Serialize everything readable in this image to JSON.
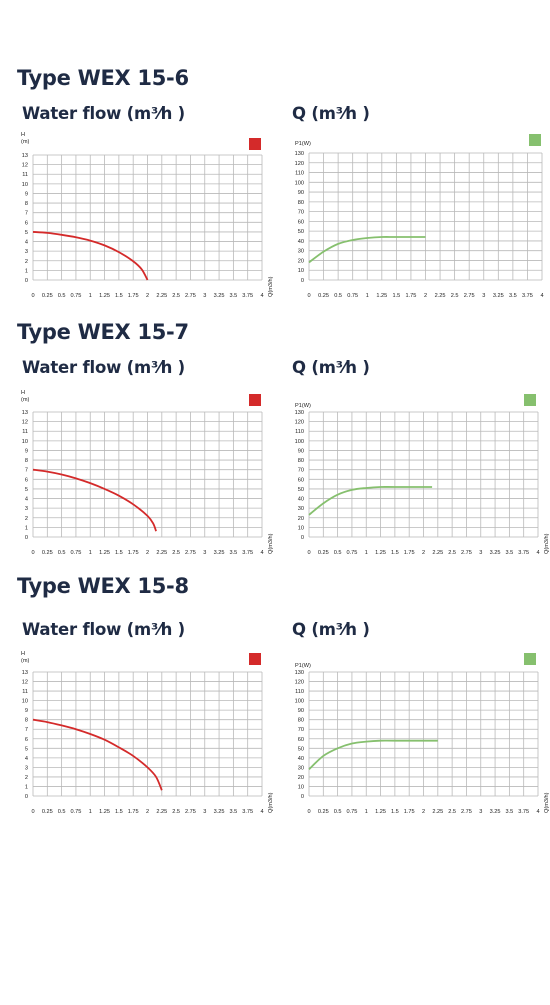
{
  "sections": [
    {
      "title": "Type WEX 15-6",
      "left_title": "Water flow (m³⁄h )",
      "right_title": "Q (m³⁄h )"
    },
    {
      "title": "Type WEX 15-7",
      "left_title": "Water flow (m³⁄h )",
      "right_title": "Q (m³⁄h )"
    },
    {
      "title": "Type WEX 15-8",
      "left_title": "Water flow (m³⁄h )",
      "right_title": "Q (m³⁄h )"
    }
  ],
  "colors": {
    "head_curve": "#d42a2a",
    "power_curve": "#86c06e",
    "grid": "#b9b9b9"
  },
  "chart_data": [
    {
      "type": "line",
      "title": "",
      "xlabel": "Q(m3/h)",
      "ylabel": "H (m)",
      "xlim": [
        0,
        4
      ],
      "ylim": [
        0,
        13
      ],
      "grid": true,
      "legend": "top-right",
      "x_ticks": [
        "0",
        "0.25",
        "0.5",
        "0.75",
        "1",
        "1.25",
        "1.5",
        "1.75",
        "2",
        "2.25",
        "2.5",
        "2.75",
        "3",
        "3.25",
        "3.5",
        "3.75",
        "4"
      ],
      "y_ticks": [
        "0",
        "1",
        "2",
        "3",
        "4",
        "5",
        "6",
        "7",
        "8",
        "9",
        "10",
        "11",
        "12",
        "13"
      ],
      "series": [
        {
          "color": "#d42a2a",
          "x": [
            0,
            0.25,
            0.5,
            0.75,
            1,
            1.25,
            1.5,
            1.75,
            1.9,
            2.0
          ],
          "y": [
            5.0,
            4.9,
            4.7,
            4.45,
            4.1,
            3.6,
            2.9,
            1.95,
            1.1,
            0
          ]
        }
      ]
    },
    {
      "type": "line",
      "title": "",
      "xlabel": "",
      "ylabel": "P1(W)",
      "xlim": [
        0,
        4
      ],
      "ylim": [
        0,
        130
      ],
      "grid": true,
      "legend": "top-right",
      "x_ticks": [
        "0",
        "0.25",
        "0.5",
        "0.75",
        "1",
        "1.25",
        "1.5",
        "1.75",
        "2",
        "2.25",
        "2.5",
        "2.75",
        "3",
        "3.25",
        "3.5",
        "3.75",
        "4"
      ],
      "y_ticks": [
        "0",
        "10",
        "20",
        "30",
        "40",
        "50",
        "60",
        "70",
        "80",
        "90",
        "100",
        "110",
        "120",
        "130"
      ],
      "series": [
        {
          "color": "#86c06e",
          "x": [
            0,
            0.25,
            0.5,
            0.75,
            1,
            1.25,
            1.5,
            2.0
          ],
          "y": [
            18,
            29,
            37,
            41,
            43,
            44,
            44,
            44
          ]
        }
      ]
    },
    {
      "type": "line",
      "title": "",
      "xlabel": "Q(m3/h)",
      "ylabel": "H (m)",
      "xlim": [
        0,
        4
      ],
      "ylim": [
        0,
        13
      ],
      "grid": true,
      "legend": "top-right",
      "x_ticks": [
        "0",
        "0.25",
        "0.5",
        "0.75",
        "1",
        "1.25",
        "1.5",
        "1.75",
        "2",
        "2.25",
        "2.5",
        "2.75",
        "3",
        "3.25",
        "3.5",
        "3.75",
        "4"
      ],
      "y_ticks": [
        "0",
        "1",
        "2",
        "3",
        "4",
        "5",
        "6",
        "7",
        "8",
        "9",
        "10",
        "11",
        "12",
        "13"
      ],
      "series": [
        {
          "color": "#d42a2a",
          "x": [
            0,
            0.25,
            0.5,
            0.75,
            1,
            1.25,
            1.5,
            1.75,
            2.0,
            2.1,
            2.15
          ],
          "y": [
            7.0,
            6.8,
            6.5,
            6.1,
            5.6,
            5.0,
            4.3,
            3.4,
            2.2,
            1.4,
            0.6
          ]
        }
      ]
    },
    {
      "type": "line",
      "title": "",
      "xlabel": "Q(m3/h)",
      "ylabel": "P1(W)",
      "xlim": [
        0,
        4
      ],
      "ylim": [
        0,
        130
      ],
      "grid": true,
      "legend": "top-right",
      "x_ticks": [
        "0",
        "0.25",
        "0.5",
        "0.75",
        "1",
        "1.25",
        "1.5",
        "1.75",
        "2",
        "2.25",
        "2.5",
        "2.75",
        "3",
        "3.25",
        "3.5",
        "3.75",
        "4"
      ],
      "y_ticks": [
        "0",
        "10",
        "20",
        "30",
        "40",
        "50",
        "60",
        "70",
        "80",
        "90",
        "100",
        "110",
        "120",
        "130"
      ],
      "series": [
        {
          "color": "#86c06e",
          "x": [
            0,
            0.25,
            0.5,
            0.75,
            1,
            1.25,
            1.5,
            2.15
          ],
          "y": [
            23,
            35,
            44,
            49,
            51,
            52,
            52,
            52
          ]
        }
      ]
    },
    {
      "type": "line",
      "title": "",
      "xlabel": "Q(m3/h)",
      "ylabel": "H (m)",
      "xlim": [
        0,
        4
      ],
      "ylim": [
        0,
        13
      ],
      "grid": true,
      "legend": "top-right",
      "x_ticks": [
        "0",
        "0.25",
        "0.5",
        "0.75",
        "1",
        "1.25",
        "1.5",
        "1.75",
        "2",
        "2.25",
        "2.5",
        "2.75",
        "3",
        "3.25",
        "3.5",
        "3.75",
        "4"
      ],
      "y_ticks": [
        "0",
        "1",
        "2",
        "3",
        "4",
        "5",
        "6",
        "7",
        "8",
        "9",
        "10",
        "11",
        "12",
        "13"
      ],
      "series": [
        {
          "color": "#d42a2a",
          "x": [
            0,
            0.25,
            0.5,
            0.75,
            1,
            1.25,
            1.5,
            1.75,
            2.0,
            2.15,
            2.25
          ],
          "y": [
            8.0,
            7.75,
            7.4,
            7.0,
            6.5,
            5.9,
            5.1,
            4.2,
            3.0,
            2.0,
            0.6
          ]
        }
      ]
    },
    {
      "type": "line",
      "title": "",
      "xlabel": "Q(m3/h)",
      "ylabel": "P1(W)",
      "xlim": [
        0,
        4
      ],
      "ylim": [
        0,
        130
      ],
      "grid": true,
      "legend": "top-right",
      "x_ticks": [
        "0",
        "0.25",
        "0.5",
        "0.75",
        "1",
        "1.25",
        "1.5",
        "1.75",
        "2",
        "2.25",
        "2.5",
        "2.75",
        "3",
        "3.25",
        "3.5",
        "3.75",
        "4"
      ],
      "y_ticks": [
        "0",
        "10",
        "20",
        "30",
        "40",
        "50",
        "60",
        "70",
        "80",
        "90",
        "100",
        "110",
        "120",
        "130"
      ],
      "series": [
        {
          "color": "#86c06e",
          "x": [
            0,
            0.25,
            0.5,
            0.75,
            1,
            1.25,
            1.5,
            2.25
          ],
          "y": [
            28,
            42,
            50,
            55,
            57,
            58,
            58,
            58
          ]
        }
      ]
    }
  ]
}
